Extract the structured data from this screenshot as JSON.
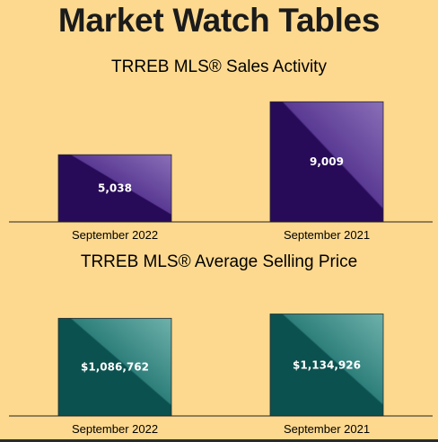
{
  "page": {
    "title": "Market Watch Tables"
  },
  "chart_data": [
    {
      "type": "bar",
      "title": "TRREB MLS® Sales Activity",
      "categories": [
        "September 2022",
        "September 2021"
      ],
      "values": [
        5038,
        9009
      ],
      "value_labels": [
        "5,038",
        "9,009"
      ],
      "ylim": [
        0,
        9500
      ],
      "grid": false,
      "colors": {
        "bar_dark": "#280b58",
        "bar_light": "#5a3a93",
        "bar_top": "#8a6fb8"
      }
    },
    {
      "type": "bar",
      "title": "TRREB MLS® Average Selling Price",
      "categories": [
        "September 2022",
        "September 2021"
      ],
      "values": [
        1086762,
        1134926
      ],
      "value_labels": [
        "$1,086,762",
        "$1,134,926"
      ],
      "ylim": [
        0,
        1350000
      ],
      "grid": false,
      "colors": {
        "bar_dark": "#0b514f",
        "bar_light": "#2e7f7b",
        "bar_top": "#6fb1ab"
      }
    }
  ]
}
